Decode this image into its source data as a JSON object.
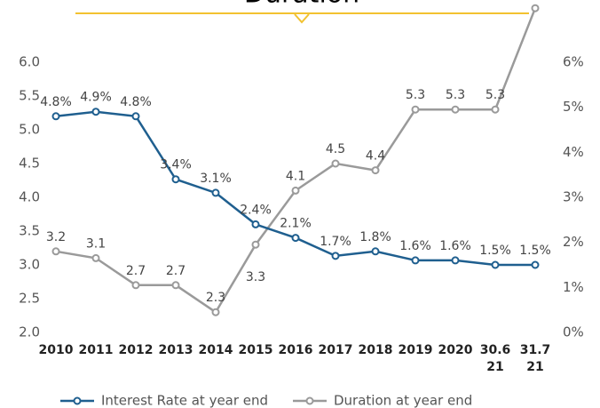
{
  "chart_data": {
    "type": "line",
    "title": "Duration",
    "categories": [
      "2010",
      "2011",
      "2012",
      "2013",
      "2014",
      "2015",
      "2016",
      "2017",
      "2018",
      "2019",
      "2020",
      "30.6 21",
      "31.7 21"
    ],
    "ylim": [
      2,
      6
    ],
    "yticks": [
      {
        "value": 2,
        "label": "2.0"
      },
      2.5,
      {
        "value": 3,
        "label": "3.0"
      },
      3.5,
      {
        "value": 4,
        "label": "4.0"
      },
      4.5,
      {
        "value": 5,
        "label": "5.0"
      },
      5.5,
      {
        "value": 6,
        "label": "6.0"
      }
    ],
    "y2lim": [
      0,
      6
    ],
    "y2ticks": [
      {
        "value": 0,
        "label": "0%"
      },
      {
        "value": 1,
        "label": "1%"
      },
      {
        "value": 2,
        "label": "2%"
      },
      {
        "value": 3,
        "label": "3%"
      },
      {
        "value": 4,
        "label": "4%"
      },
      {
        "value": 5,
        "label": "5%"
      },
      {
        "value": 6,
        "label": "6%"
      }
    ],
    "grid": false,
    "legend": "bottom",
    "series": [
      {
        "name": "Interest Rate at year end",
        "color": "#1f5f8f",
        "axis": "y2",
        "values": [
          4.8,
          4.9,
          4.8,
          3.4,
          3.1,
          2.4,
          2.1,
          1.7,
          1.8,
          1.6,
          1.6,
          1.5,
          1.5
        ],
        "value_labels": [
          "4.8%",
          "4.9%",
          "4.8%",
          "3.4%",
          "3.1%",
          "2.4%",
          "2.1%",
          "1.7%",
          "1.8%",
          "1.6%",
          "1.6%",
          "1.5%",
          "1.5%"
        ]
      },
      {
        "name": "Duration at year end",
        "color": "#9a9a9a",
        "values": [
          3.2,
          3.1,
          2.7,
          2.7,
          2.3,
          3.3,
          4.1,
          4.5,
          4.4,
          5.3,
          5.3,
          5.3,
          6.8
        ]
      }
    ]
  }
}
